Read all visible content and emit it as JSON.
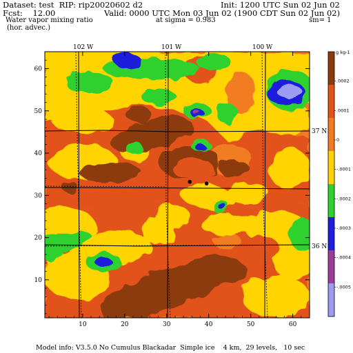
{
  "header": {
    "dataset": "Dataset: test  RIP: rip20020602 d2",
    "init": "Init: 1200 UTC Sun 02 Jun 02",
    "fcst": "Fcst:    12.00",
    "valid": "Valid: 0000 UTC Mon 03 Jun 02 (1900 CDT Sun 02 Jun 02)",
    "field": "Water vapor mixing ratio",
    "sigma": "at sigma = 0.983",
    "sm": "sm= 1",
    "advection": "(hor. advec.)"
  },
  "footer": {
    "model_info": "Model info: V3.5.0 No Cumulus Blackadar  Simple ice    4 km,  29 levels,   10 sec"
  },
  "map": {
    "longitude_labels": [
      "102 W",
      "101 W",
      "100 W"
    ],
    "latitude_labels": [
      "37 N",
      "36 N"
    ]
  },
  "colors": {
    "brown": "#8b3a0c",
    "dark_orange": "#e2531b",
    "orange": "#f27b22",
    "yellow": "#ffd400",
    "green": "#2fd12f",
    "blue": "#1e1edc",
    "purple": "#9a3c9a",
    "lavender": "#9c9cf0"
  },
  "chart_data": {
    "type": "heatmap",
    "title": "Water vapor mixing ratio",
    "x_ticks": [
      10,
      20,
      30,
      40,
      50,
      60
    ],
    "y_ticks": [
      10,
      20,
      30,
      40,
      50,
      60
    ],
    "xlim": [
      1,
      64
    ],
    "ylim": [
      1,
      64
    ],
    "colorbar": {
      "unit_label": "g kg-1",
      "levels": [
        ".0002",
        ".0001",
        "0",
        "-.0001",
        "-.0002",
        "-.0003",
        "-.0004",
        "-.0005"
      ],
      "level_values": [
        0.0002,
        0.0001,
        0,
        -0.0001,
        -0.0002,
        -0.0003,
        -0.0004,
        -0.0005
      ],
      "band_colors": [
        "#8b3a0c",
        "#e2531b",
        "#f27b22",
        "#ffd400",
        "#2fd12f",
        "#1e1edc",
        "#9a3c9a",
        "#9c9cf0"
      ]
    },
    "markers": [
      {
        "x": 35.5,
        "y": 33.2
      },
      {
        "x": 39.5,
        "y": 32.8
      }
    ]
  }
}
